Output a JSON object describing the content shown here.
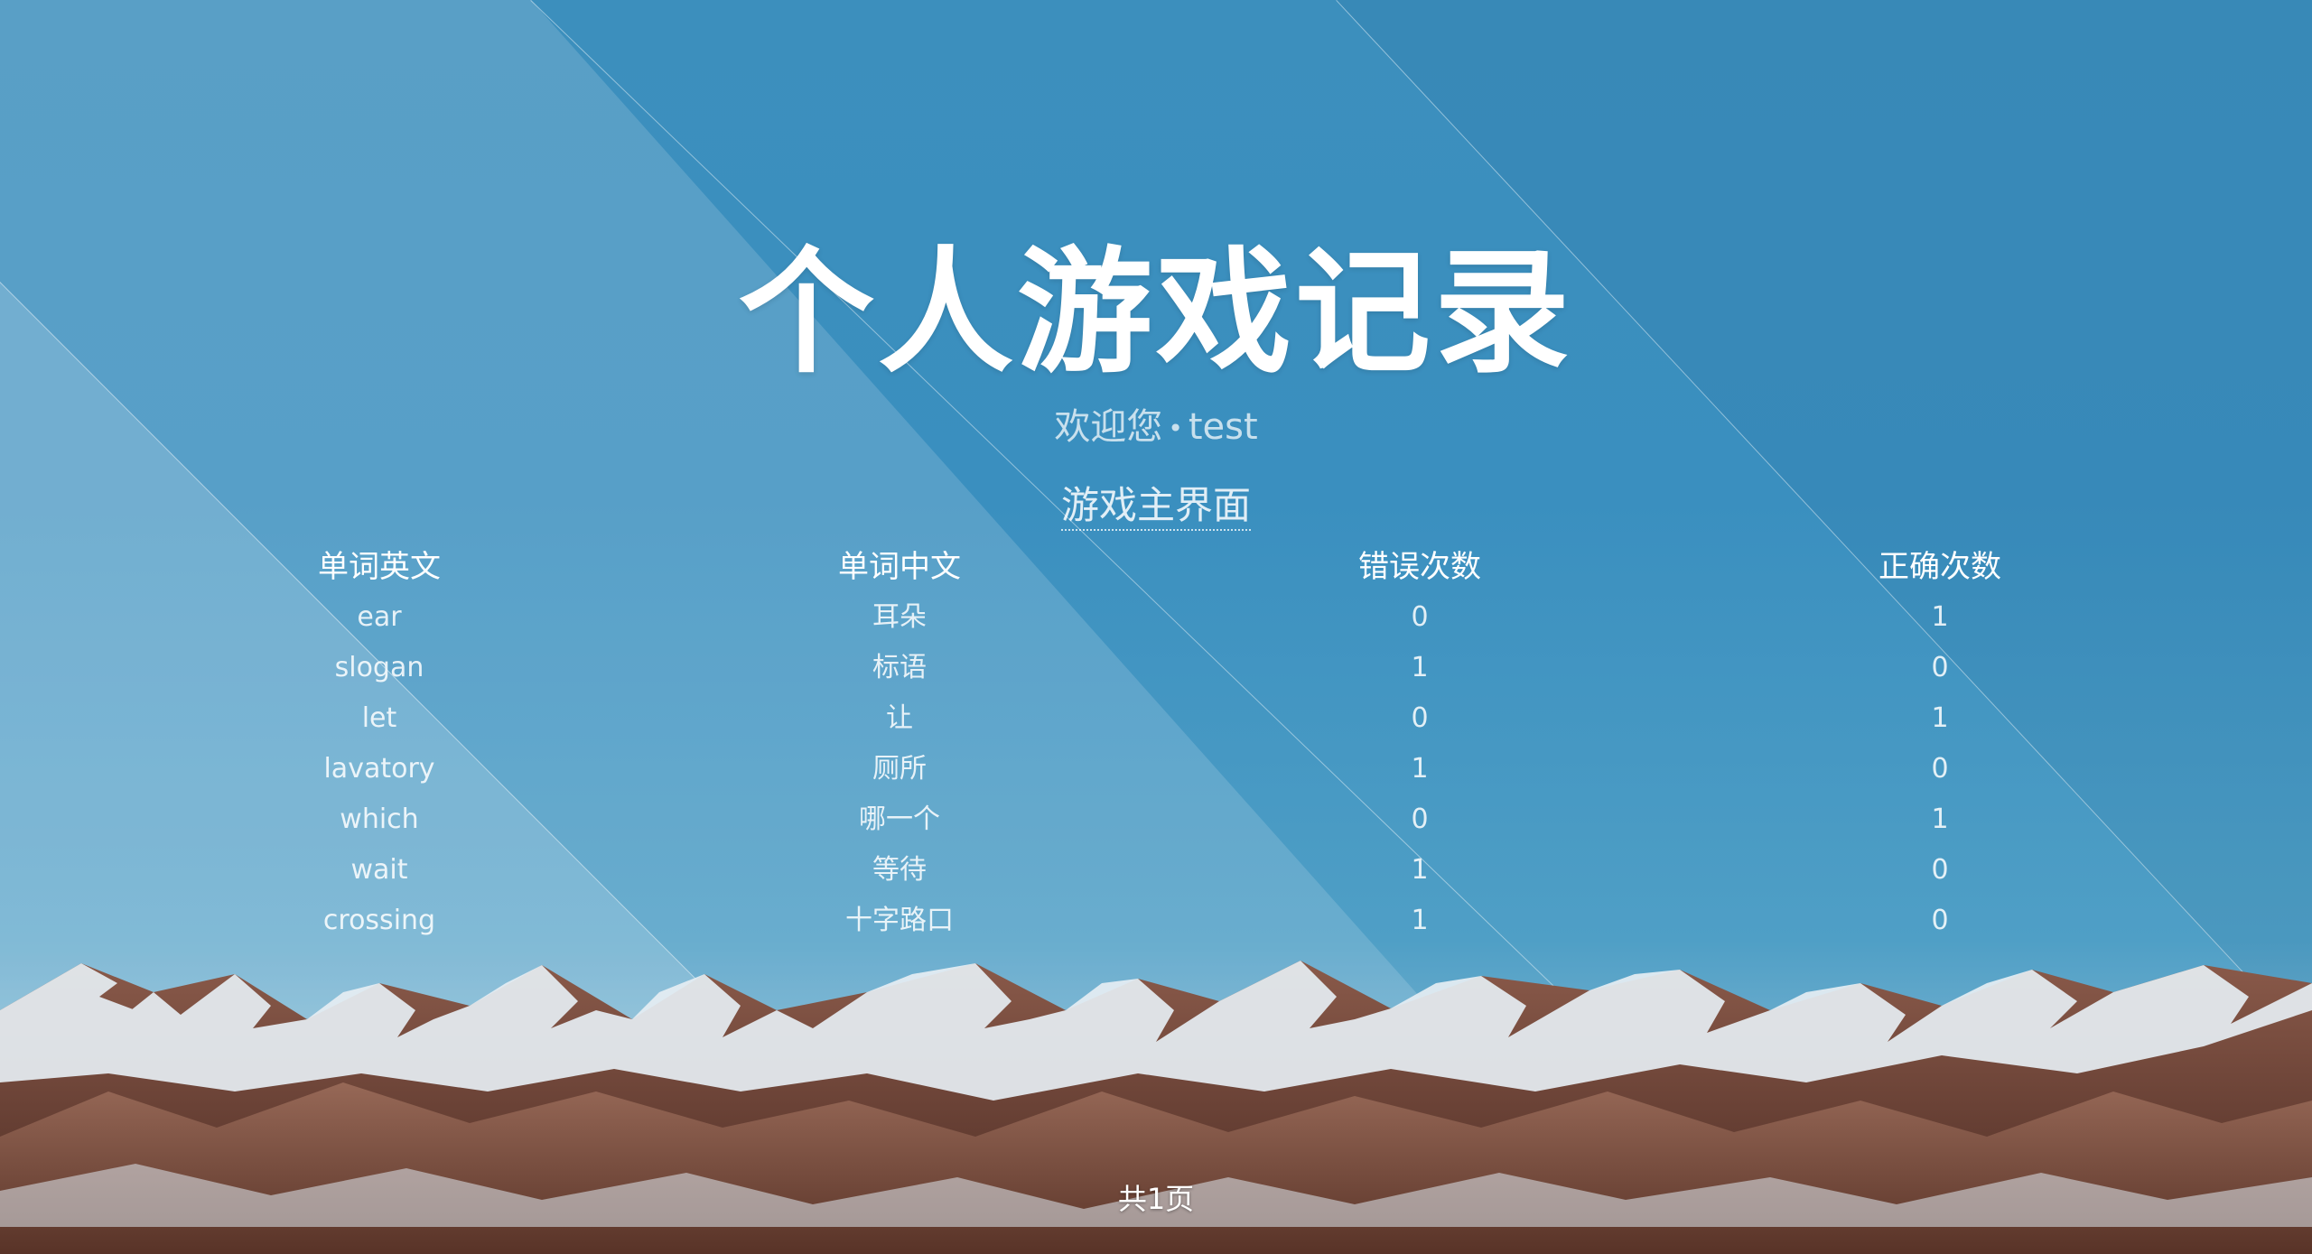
{
  "header": {
    "title": "个人游戏记录",
    "welcome_label": "欢迎您",
    "separator": "•",
    "username": "test",
    "main_link": "游戏主界面"
  },
  "table": {
    "columns": [
      "单词英文",
      "单词中文",
      "错误次数",
      "正确次数"
    ],
    "rows": [
      {
        "english": "ear",
        "chinese": "耳朵",
        "wrong": "0",
        "right": "1"
      },
      {
        "english": "slogan",
        "chinese": "标语",
        "wrong": "1",
        "right": "0"
      },
      {
        "english": "let",
        "chinese": "让",
        "wrong": "0",
        "right": "1"
      },
      {
        "english": "lavatory",
        "chinese": "厕所",
        "wrong": "1",
        "right": "0"
      },
      {
        "english": "which",
        "chinese": "哪一个",
        "wrong": "0",
        "right": "1"
      },
      {
        "english": "wait",
        "chinese": "等待",
        "wrong": "1",
        "right": "0"
      },
      {
        "english": "crossing",
        "chinese": "十字路口",
        "wrong": "1",
        "right": "0"
      }
    ]
  },
  "pagination": {
    "text": "共1页"
  },
  "colors": {
    "background_top": "#3c8fbd",
    "text": "#ffffff"
  }
}
